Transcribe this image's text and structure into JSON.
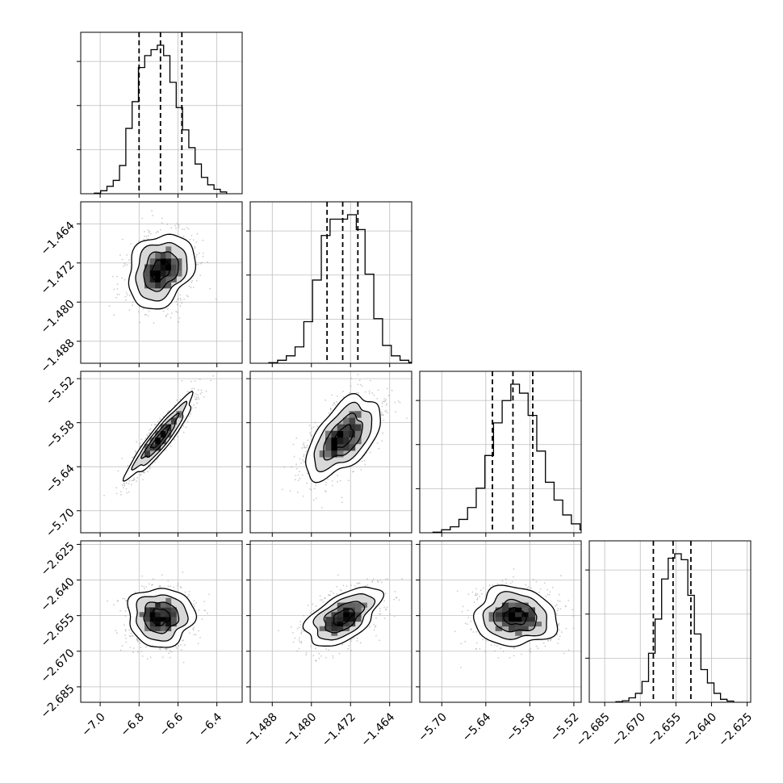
{
  "chart_data": {
    "type": "corner",
    "grid": true,
    "dims": [
      {
        "mean": -6.69,
        "sd": 0.085,
        "q16": -6.8,
        "q50": -6.69,
        "q84": -6.58,
        "range": [
          -7.1,
          -6.27
        ],
        "ticks": [
          -7.0,
          -6.8,
          -6.6,
          -6.4
        ],
        "tick_labels": [
          "−7.0",
          "−6.8",
          "−6.6",
          "−6.4"
        ]
      },
      {
        "mean": -1.4735,
        "sd": 0.0038,
        "q16": -1.4768,
        "q50": -1.4736,
        "q84": -1.4705,
        "range": [
          -1.4925,
          -1.4595
        ],
        "ticks": [
          -1.488,
          -1.48,
          -1.472,
          -1.464
        ],
        "tick_labels": [
          "−1.488",
          "−1.480",
          "−1.472",
          "−1.464"
        ]
      },
      {
        "mean": -5.6,
        "sd": 0.028,
        "q16": -5.631,
        "q50": -5.603,
        "q84": -5.576,
        "range": [
          -5.73,
          -5.51
        ],
        "ticks": [
          -5.7,
          -5.64,
          -5.58,
          -5.52
        ],
        "tick_labels": [
          "−5.70",
          "−5.64",
          "−5.58",
          "−5.52"
        ]
      },
      {
        "mean": -2.6555,
        "sd": 0.0062,
        "q16": -2.6645,
        "q50": -2.6562,
        "q84": -2.6487,
        "range": [
          -2.6915,
          -2.6235
        ],
        "ticks": [
          -2.685,
          -2.67,
          -2.655,
          -2.64,
          -2.625
        ],
        "tick_labels": [
          "−2.685",
          "−2.670",
          "−2.655",
          "−2.640",
          "−2.625"
        ]
      }
    ],
    "correlations": {
      "1,0": 0.25,
      "2,0": 0.92,
      "2,1": 0.55,
      "3,0": 0.0,
      "3,1": 0.55,
      "3,2": -0.05
    },
    "hist_shapes": [
      [
        0.004,
        0.02,
        0.05,
        0.09,
        0.19,
        0.44,
        0.62,
        0.85,
        0.93,
        0.97,
        1.0,
        0.93,
        0.75,
        0.58,
        0.43,
        0.31,
        0.2,
        0.11,
        0.06,
        0.03,
        0.012
      ],
      [
        0.004,
        0.02,
        0.05,
        0.11,
        0.28,
        0.56,
        0.86,
        0.97,
        0.97,
        1.0,
        0.9,
        0.6,
        0.3,
        0.12,
        0.05,
        0.02,
        0.006
      ],
      [
        0.004,
        0.02,
        0.04,
        0.09,
        0.17,
        0.3,
        0.52,
        0.74,
        0.89,
        1.0,
        0.94,
        0.79,
        0.55,
        0.34,
        0.22,
        0.12,
        0.06,
        0.02,
        0.01
      ],
      [
        0.004,
        0.01,
        0.03,
        0.06,
        0.14,
        0.33,
        0.56,
        0.83,
        0.97,
        1.0,
        0.96,
        0.72,
        0.46,
        0.22,
        0.13,
        0.06,
        0.02,
        0.008
      ]
    ]
  }
}
